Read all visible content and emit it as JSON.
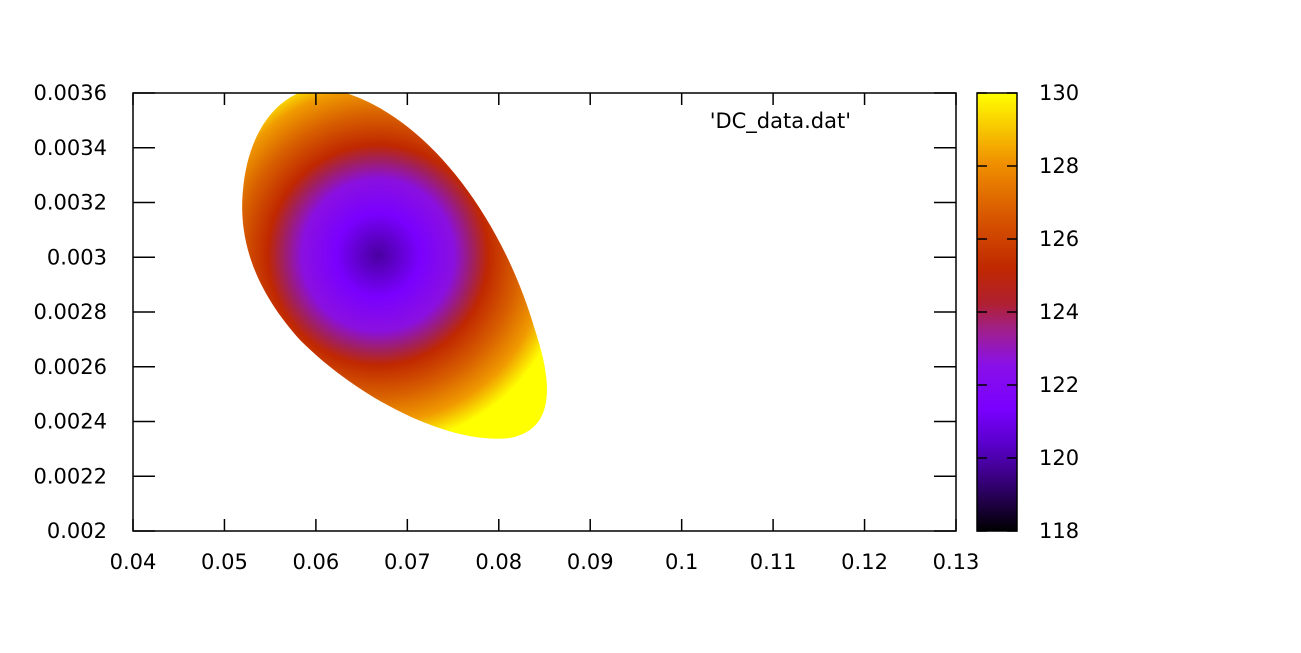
{
  "chart_data": {
    "type": "heatmap",
    "title": "",
    "xlabel": "",
    "ylabel": "",
    "series_name": "'DC_data.dat'",
    "legend_position": "top-right",
    "xlim": [
      0.04,
      0.13
    ],
    "ylim": [
      0.002,
      0.0036
    ],
    "x_ticks": [
      "0.04",
      "0.05",
      "0.06",
      "0.07",
      "0.08",
      "0.09",
      "0.1",
      "0.11",
      "0.12",
      "0.13"
    ],
    "y_ticks": [
      "0.002",
      "0.0022",
      "0.0024",
      "0.0026",
      "0.0028",
      "0.003",
      "0.0032",
      "0.0034",
      "0.0036"
    ],
    "colorbar": {
      "range": [
        118,
        130
      ],
      "ticks": [
        "118",
        "120",
        "122",
        "124",
        "126",
        "128",
        "130"
      ],
      "palette": "black-blue-violet-red-orange-yellow"
    },
    "region": {
      "description_points": [
        {
          "x": 0.0525,
          "y": 0.00325,
          "z": 130
        },
        {
          "x": 0.0595,
          "y": 0.0036,
          "z": 130
        },
        {
          "x": 0.0855,
          "y": 0.0025,
          "z": 130
        },
        {
          "x": 0.08,
          "y": 0.00233,
          "z": 130
        }
      ],
      "minimum": {
        "x": 0.067,
        "y": 0.003,
        "z": 118.5
      }
    }
  }
}
